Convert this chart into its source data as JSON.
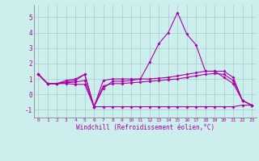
{
  "xlabel": "Windchill (Refroidissement éolien,°C)",
  "background_color": "#cceeed",
  "grid_color": "#aacccc",
  "line_color": "#aa00aa",
  "x_values": [
    0,
    1,
    2,
    3,
    4,
    5,
    6,
    7,
    8,
    9,
    10,
    11,
    12,
    13,
    14,
    15,
    16,
    17,
    18,
    19,
    20,
    21,
    22,
    23
  ],
  "y_main": [
    1.3,
    0.7,
    0.7,
    0.8,
    0.9,
    1.3,
    -0.8,
    0.4,
    0.85,
    0.85,
    0.9,
    1.0,
    2.1,
    3.3,
    4.0,
    5.3,
    3.9,
    3.2,
    1.5,
    1.5,
    1.1,
    0.7,
    -0.4,
    -0.7
  ],
  "y_low": [
    1.3,
    0.7,
    0.7,
    0.7,
    0.65,
    0.65,
    -0.8,
    -0.8,
    -0.8,
    -0.8,
    -0.8,
    -0.8,
    -0.8,
    -0.8,
    -0.8,
    -0.8,
    -0.8,
    -0.8,
    -0.8,
    -0.8,
    -0.8,
    -0.8,
    -0.7,
    -0.7
  ],
  "y_high": [
    1.3,
    0.7,
    0.7,
    0.9,
    1.0,
    1.3,
    -0.8,
    0.9,
    1.0,
    1.0,
    1.0,
    1.0,
    1.0,
    1.05,
    1.1,
    1.2,
    1.3,
    1.4,
    1.5,
    1.5,
    1.5,
    1.1,
    -0.4,
    -0.7
  ],
  "y_mid": [
    1.3,
    0.7,
    0.7,
    0.75,
    0.8,
    0.9,
    -0.8,
    0.55,
    0.7,
    0.7,
    0.75,
    0.8,
    0.85,
    0.9,
    0.95,
    1.0,
    1.1,
    1.2,
    1.3,
    1.35,
    1.3,
    0.9,
    -0.4,
    -0.7
  ],
  "ylim": [
    -1.5,
    5.8
  ],
  "yticks": [
    -1,
    0,
    1,
    2,
    3,
    4,
    5
  ],
  "xticks": [
    0,
    1,
    2,
    3,
    4,
    5,
    6,
    7,
    8,
    9,
    10,
    11,
    12,
    13,
    14,
    15,
    16,
    17,
    18,
    19,
    20,
    21,
    22,
    23
  ],
  "xlabels": [
    "0",
    "1",
    "2",
    "3",
    "4",
    "5",
    "6",
    "7",
    "8",
    "9",
    "10",
    "11",
    "12",
    "13",
    "14",
    "15",
    "16",
    "17",
    "18",
    "19",
    "20",
    "21",
    "22",
    "23"
  ]
}
